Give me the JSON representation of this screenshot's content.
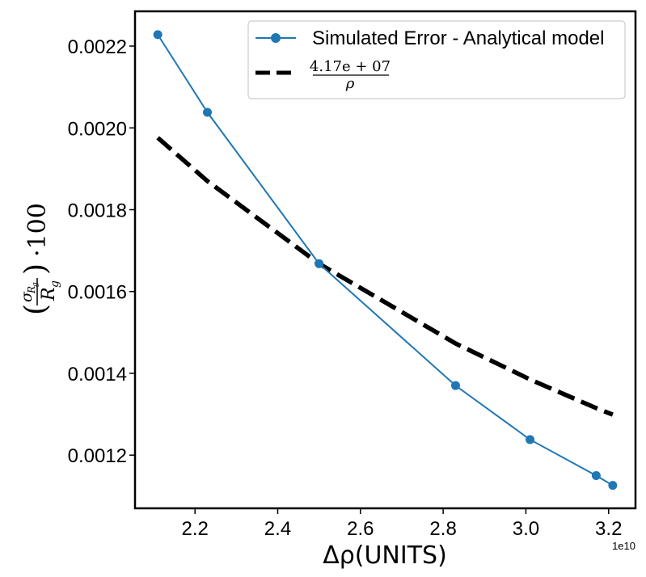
{
  "chart_data": {
    "type": "line",
    "xlabel": "Δρ(UNITS)",
    "ylabel_parts": {
      "open": "(",
      "num": "σ",
      "num_sub": "R",
      "num_subsub": "g",
      "den": "R",
      "den_sub": "g",
      "close": ")",
      "suffix": "·100"
    },
    "x_offset_label": "1e10",
    "xlim": [
      2.055,
      3.265
    ],
    "ylim": [
      0.00107,
      0.002285
    ],
    "x_ticks": [
      2.2,
      2.4,
      2.6,
      2.8,
      3.0,
      3.2
    ],
    "x_tick_labels": [
      "2.2",
      "2.4",
      "2.6",
      "2.8",
      "3.0",
      "3.2"
    ],
    "y_ticks": [
      0.0012,
      0.0014,
      0.0016,
      0.0018,
      0.002,
      0.0022
    ],
    "y_tick_labels": [
      "0.0012",
      "0.0014",
      "0.0016",
      "0.0018",
      "0.0020",
      "0.0022"
    ],
    "legend_position": "top-right",
    "series": [
      {
        "name": "Simulated Error - Analytical model",
        "style": "line-with-markers",
        "color": "#1f77b4",
        "x": [
          2.11,
          2.23,
          2.5,
          2.83,
          3.01,
          3.17,
          3.21
        ],
        "y": [
          0.002228,
          0.002038,
          0.001668,
          0.00137,
          0.001238,
          0.00115,
          0.001126
        ]
      },
      {
        "name_parts": {
          "num": "4.17e + 07",
          "den": "ρ"
        },
        "style": "dashed",
        "color": "#000000",
        "x": [
          2.11,
          2.23,
          2.5,
          2.83,
          3.01,
          3.17,
          3.21
        ],
        "y": [
          0.001976,
          0.00187,
          0.001668,
          0.001473,
          0.001385,
          0.001315,
          0.001299
        ]
      }
    ]
  }
}
